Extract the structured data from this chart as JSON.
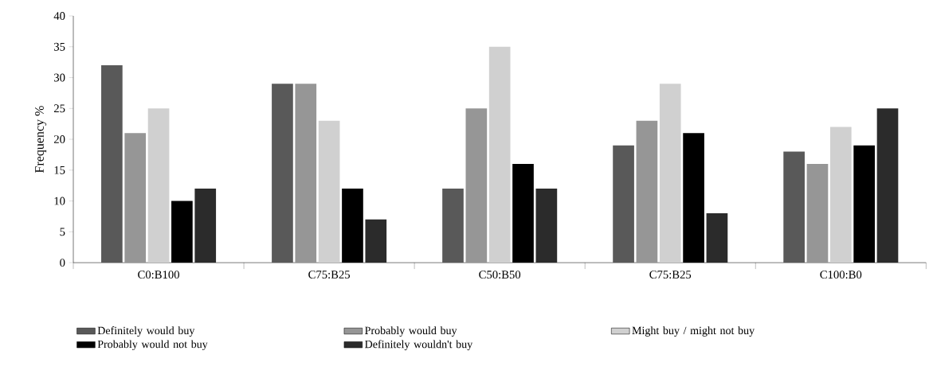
{
  "chart_data": {
    "type": "bar",
    "ylabel": "Frequency %",
    "categories": [
      "C0:B100",
      "C75:B25",
      "C50:B50",
      "C75:B25",
      "C100:B0"
    ],
    "series": [
      {
        "name": "Definitely would buy",
        "color": "#595959",
        "values": [
          32,
          29,
          12,
          19,
          18
        ]
      },
      {
        "name": "Probably would buy",
        "color": "#969696",
        "values": [
          21,
          29,
          25,
          23,
          16
        ]
      },
      {
        "name": "Might buy / might not buy",
        "color": "#d0d0d0",
        "values": [
          25,
          23,
          35,
          29,
          22
        ]
      },
      {
        "name": "Probably would not buy",
        "color": "#000000",
        "values": [
          10,
          12,
          16,
          21,
          19
        ]
      },
      {
        "name": "Definitely wouldn't buy",
        "color": "#2b2b2b",
        "values": [
          12,
          7,
          12,
          8,
          25
        ]
      }
    ],
    "ylim": [
      0,
      40
    ],
    "yticks": [
      0,
      5,
      10,
      15,
      20,
      25,
      30,
      35,
      40
    ],
    "legend": "bottom",
    "grid": false
  }
}
